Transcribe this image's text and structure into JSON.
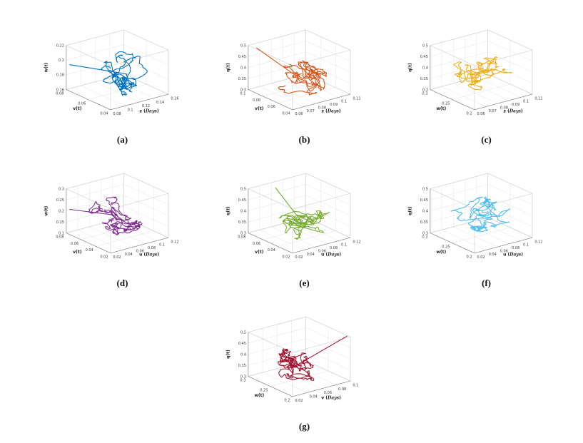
{
  "figure": {
    "background": "#ffffff",
    "caption_labels": [
      "(a)",
      "(b)",
      "(c)",
      "(d)",
      "(e)",
      "(f)",
      "(g)"
    ]
  },
  "chart_data": [
    {
      "id": "a",
      "caption": "(a)",
      "type": "line3d",
      "color": "#0072BD",
      "grid": true,
      "view": {
        "azimuth": -37.5,
        "elevation": 30
      },
      "x_axis": {
        "label": "z (Days)",
        "ticks": [
          0.08,
          0.1,
          0.12,
          0.14,
          0.16
        ],
        "range": [
          0.08,
          0.16
        ]
      },
      "y_axis": {
        "label": "v(t)",
        "ticks": [
          0.04,
          0.06,
          0.08
        ],
        "range": [
          0.04,
          0.08
        ]
      },
      "z_axis": {
        "label": "w(t)",
        "ticks": [
          0.16,
          0.18,
          0.2,
          0.22
        ],
        "range": [
          0.16,
          0.22
        ]
      },
      "trajectory": {
        "coords": "normalized",
        "seed": 3,
        "n": 430,
        "start": [
          0.0,
          0.92,
          0.6
        ],
        "center": [
          0.58,
          0.42,
          0.42
        ],
        "spread": [
          0.2,
          0.3,
          0.36
        ],
        "step": [
          0.045,
          0.05,
          0.06
        ]
      }
    },
    {
      "id": "b",
      "caption": "(b)",
      "type": "line3d",
      "color": "#D95319",
      "grid": true,
      "view": {
        "azimuth": -37.5,
        "elevation": 30
      },
      "x_axis": {
        "label": "z (Days)",
        "ticks": [
          0.06,
          0.07,
          0.08,
          0.09,
          0.1,
          0.11
        ],
        "range": [
          0.06,
          0.11
        ]
      },
      "y_axis": {
        "label": "v(t)",
        "ticks": [
          0.04,
          0.06,
          0.08,
          0.1
        ],
        "range": [
          0.04,
          0.1
        ]
      },
      "z_axis": {
        "label": "q(t)",
        "ticks": [
          0.3,
          0.35,
          0.4,
          0.45,
          0.5
        ],
        "range": [
          0.3,
          0.5
        ]
      },
      "trajectory": {
        "coords": "normalized",
        "seed": 7,
        "n": 430,
        "start": [
          0.03,
          0.85,
          1.0
        ],
        "center": [
          0.5,
          0.45,
          0.3
        ],
        "spread": [
          0.26,
          0.28,
          0.24
        ],
        "step": [
          0.05,
          0.05,
          0.05
        ]
      }
    },
    {
      "id": "c",
      "caption": "(c)",
      "type": "line3d",
      "color": "#EDB120",
      "grid": true,
      "view": {
        "azimuth": -37.5,
        "elevation": 30
      },
      "x_axis": {
        "label": "z (Days)",
        "ticks": [
          0.06,
          0.07,
          0.08,
          0.09,
          0.1,
          0.11
        ],
        "range": [
          0.06,
          0.11
        ]
      },
      "y_axis": {
        "label": "w(t)",
        "ticks": [
          0.2,
          0.25,
          0.3
        ],
        "range": [
          0.2,
          0.3
        ]
      },
      "z_axis": {
        "label": "q(t)",
        "ticks": [
          0.3,
          0.35,
          0.4,
          0.45,
          0.5
        ],
        "range": [
          0.3,
          0.5
        ]
      },
      "trajectory": {
        "coords": "normalized",
        "seed": 5,
        "n": 430,
        "center": [
          0.52,
          0.5,
          0.45
        ],
        "spread": [
          0.3,
          0.3,
          0.22
        ],
        "step": [
          0.055,
          0.055,
          0.05
        ]
      }
    },
    {
      "id": "d",
      "caption": "(d)",
      "type": "line3d",
      "color": "#7E2F8E",
      "grid": true,
      "view": {
        "azimuth": -37.5,
        "elevation": 30
      },
      "x_axis": {
        "label": "u (Days)",
        "ticks": [
          0.02,
          0.04,
          0.06,
          0.08,
          0.1,
          0.12
        ],
        "range": [
          0.02,
          0.12
        ]
      },
      "y_axis": {
        "label": "v(t)",
        "ticks": [
          0.02,
          0.04,
          0.06,
          0.08
        ],
        "range": [
          0.02,
          0.08
        ]
      },
      "z_axis": {
        "label": "w(t)",
        "ticks": [
          0.1,
          0.15,
          0.2,
          0.25,
          0.3
        ],
        "range": [
          0.1,
          0.3
        ]
      },
      "trajectory": {
        "coords": "normalized",
        "seed": 11,
        "n": 430,
        "start": [
          0.02,
          0.95,
          0.55
        ],
        "center": [
          0.5,
          0.5,
          0.45
        ],
        "spread": [
          0.28,
          0.3,
          0.26
        ],
        "step": [
          0.05,
          0.05,
          0.05
        ]
      }
    },
    {
      "id": "e",
      "caption": "(e)",
      "type": "line3d",
      "color": "#77AC30",
      "grid": true,
      "view": {
        "azimuth": -37.5,
        "elevation": 30
      },
      "x_axis": {
        "label": "u (Days)",
        "ticks": [
          0.02,
          0.04,
          0.06,
          0.08,
          0.1,
          0.12
        ],
        "range": [
          0.02,
          0.12
        ]
      },
      "y_axis": {
        "label": "v(t)",
        "ticks": [
          0.02,
          0.04,
          0.06,
          0.08
        ],
        "range": [
          0.02,
          0.08
        ]
      },
      "z_axis": {
        "label": "q(t)",
        "ticks": [
          0.3,
          0.35,
          0.4,
          0.45,
          0.5
        ],
        "range": [
          0.3,
          0.5
        ]
      },
      "trajectory": {
        "coords": "normalized",
        "seed": 13,
        "n": 430,
        "start": [
          0.32,
          0.8,
          1.0
        ],
        "center": [
          0.48,
          0.45,
          0.38
        ],
        "spread": [
          0.28,
          0.3,
          0.24
        ],
        "step": [
          0.05,
          0.05,
          0.05
        ]
      }
    },
    {
      "id": "f",
      "caption": "(f)",
      "type": "line3d",
      "color": "#4DBEEE",
      "grid": true,
      "view": {
        "azimuth": -37.5,
        "elevation": 30
      },
      "x_axis": {
        "label": "u (Days)",
        "ticks": [
          0.02,
          0.04,
          0.06,
          0.08,
          0.1,
          0.12
        ],
        "range": [
          0.02,
          0.12
        ]
      },
      "y_axis": {
        "label": "w(t)",
        "ticks": [
          0.2,
          0.25,
          0.3
        ],
        "range": [
          0.2,
          0.3
        ]
      },
      "z_axis": {
        "label": "q(t)",
        "ticks": [
          0.3,
          0.35,
          0.4,
          0.45,
          0.5
        ],
        "range": [
          0.3,
          0.5
        ]
      },
      "trajectory": {
        "coords": "normalized",
        "seed": 17,
        "n": 430,
        "center": [
          0.5,
          0.5,
          0.45
        ],
        "spread": [
          0.3,
          0.32,
          0.2
        ],
        "step": [
          0.055,
          0.055,
          0.05
        ]
      }
    },
    {
      "id": "g",
      "caption": "(g)",
      "type": "line3d",
      "color": "#A2142F",
      "grid": true,
      "view": {
        "azimuth": -37.5,
        "elevation": 30
      },
      "x_axis": {
        "label": "v (Days)",
        "ticks": [
          0.02,
          0.04,
          0.06,
          0.08,
          0.1
        ],
        "range": [
          0.02,
          0.1
        ]
      },
      "y_axis": {
        "label": "w(t)",
        "ticks": [
          0.2,
          0.25,
          0.3
        ],
        "range": [
          0.2,
          0.3
        ]
      },
      "z_axis": {
        "label": "q(t)",
        "ticks": [
          0.3,
          0.35,
          0.4,
          0.45,
          0.5
        ],
        "range": [
          0.3,
          0.5
        ]
      },
      "trajectory": {
        "coords": "normalized",
        "seed": 23,
        "n": 430,
        "start": [
          0.98,
          0.05,
          1.0
        ],
        "center": [
          0.4,
          0.45,
          0.35
        ],
        "spread": [
          0.16,
          0.26,
          0.3
        ],
        "step": [
          0.045,
          0.05,
          0.06
        ]
      }
    }
  ]
}
